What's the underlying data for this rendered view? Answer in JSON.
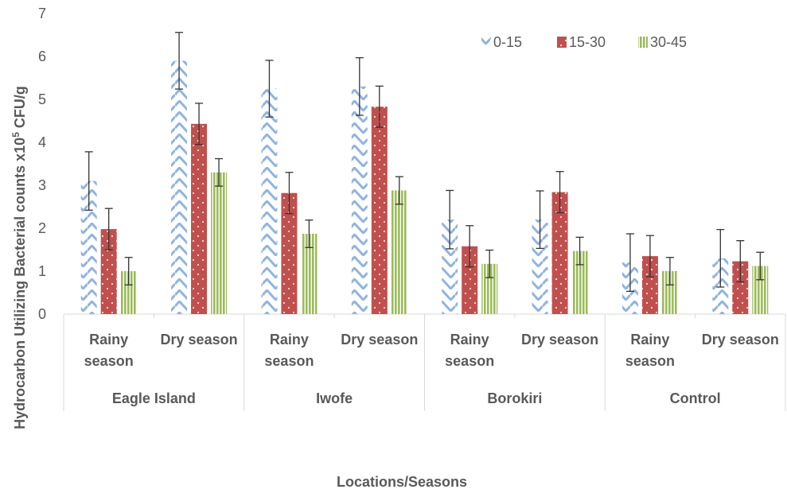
{
  "chart_data": {
    "type": "bar",
    "ylabel_parts": [
      "Hydrocarbon Utilizing Bacterial counts x10",
      "5",
      " CFU/g"
    ],
    "xlabel": "Locations/Seasons",
    "ylim": [
      0,
      7
    ],
    "yticks": [
      "0",
      "1",
      "2",
      "3",
      "4",
      "5",
      "6",
      "7"
    ],
    "groups": [
      {
        "name": "Eagle Island",
        "categories": [
          [
            "Rainy",
            "season"
          ],
          [
            "Dry season"
          ]
        ]
      },
      {
        "name": "Iwofe",
        "categories": [
          [
            "Rainy",
            "season"
          ],
          [
            "Dry season"
          ]
        ]
      },
      {
        "name": "Borokiri",
        "categories": [
          [
            "Rainy",
            "season"
          ],
          [
            "Dry season"
          ]
        ]
      },
      {
        "name": "Control",
        "categories": [
          [
            "Rainy",
            "season"
          ],
          [
            "Dry season"
          ]
        ]
      }
    ],
    "series": [
      {
        "name": "0-15",
        "color": "#8fb4e3",
        "pattern": "zigzag",
        "values": [
          3.1,
          5.9,
          5.25,
          5.3,
          2.2,
          2.2,
          1.2,
          1.3
        ],
        "errors": [
          0.68,
          0.66,
          0.66,
          0.67,
          0.68,
          0.67,
          0.67,
          0.67
        ]
      },
      {
        "name": "15-30",
        "color": "#c0504d",
        "pattern": "dots",
        "values": [
          1.98,
          4.43,
          2.82,
          4.83,
          1.58,
          2.84,
          1.35,
          1.23
        ],
        "errors": [
          0.48,
          0.48,
          0.48,
          0.48,
          0.48,
          0.48,
          0.48,
          0.48
        ]
      },
      {
        "name": "30-45",
        "color": "#9bbb59",
        "pattern": "vstripes",
        "values": [
          1.0,
          3.3,
          1.87,
          2.88,
          1.17,
          1.47,
          1.0,
          1.12
        ],
        "errors": [
          0.32,
          0.32,
          0.32,
          0.32,
          0.32,
          0.32,
          0.32,
          0.32
        ]
      }
    ],
    "legend_position": "top-right",
    "grid": false
  }
}
